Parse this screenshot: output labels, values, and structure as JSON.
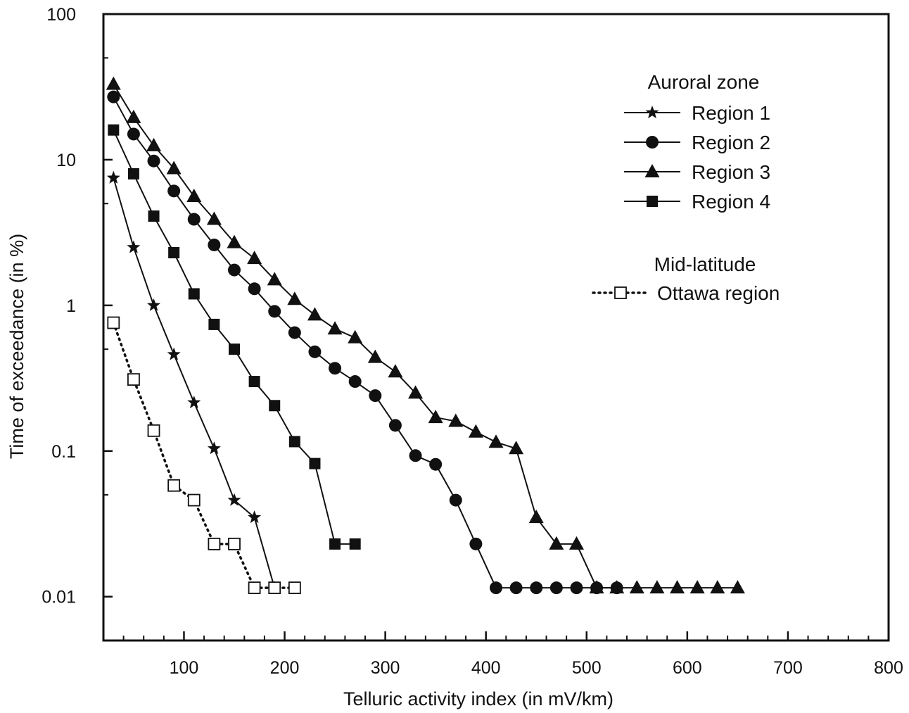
{
  "chart_data": {
    "type": "line",
    "title": "",
    "xlabel": "Telluric activity index (in mV/km)",
    "ylabel": "Time of exceedance (in %)",
    "xlim": [
      20,
      800
    ],
    "ylim": [
      0.005,
      100
    ],
    "y_scale": "log",
    "x_ticks": [
      100,
      200,
      300,
      400,
      500,
      600,
      700,
      800
    ],
    "x_tick_labels": [
      "100",
      "200",
      "300",
      "400",
      "500",
      "600",
      "700",
      "800"
    ],
    "y_ticks": [
      0.01,
      0.1,
      1,
      10,
      100
    ],
    "y_tick_labels": [
      "0.01",
      "0.1",
      "1",
      "10",
      "100"
    ],
    "grid": false,
    "legend": {
      "placement": "top-right",
      "groups": [
        {
          "heading": "Auroral zone",
          "entries": [
            "Region 1",
            "Region 2",
            "Region 3",
            "Region 4"
          ]
        },
        {
          "heading": "Mid-latitude",
          "entries": [
            "Ottawa region"
          ]
        }
      ]
    },
    "series": [
      {
        "name": "Region 1",
        "marker": "star",
        "line": "solid",
        "color": "#111111",
        "x": [
          30,
          50,
          70,
          90,
          110,
          130,
          150,
          170,
          190
        ],
        "y": [
          7.5,
          2.5,
          1.0,
          0.46,
          0.215,
          0.104,
          0.046,
          0.035,
          0.0115
        ]
      },
      {
        "name": "Region 2",
        "marker": "circle",
        "line": "solid",
        "color": "#111111",
        "x": [
          30,
          50,
          70,
          90,
          110,
          130,
          150,
          170,
          190,
          210,
          230,
          250,
          270,
          290,
          310,
          330,
          350,
          370,
          390,
          410,
          430,
          450,
          470,
          490,
          510,
          530
        ],
        "y": [
          27,
          15,
          9.8,
          6.1,
          3.9,
          2.6,
          1.75,
          1.3,
          0.91,
          0.65,
          0.48,
          0.37,
          0.3,
          0.24,
          0.15,
          0.093,
          0.081,
          0.046,
          0.023,
          0.0115,
          0.0115,
          0.0115,
          0.0115,
          0.0115,
          0.0115,
          0.0115
        ]
      },
      {
        "name": "Region 3",
        "marker": "triangle",
        "line": "solid",
        "color": "#111111",
        "x": [
          30,
          50,
          70,
          90,
          110,
          130,
          150,
          170,
          190,
          210,
          230,
          250,
          270,
          290,
          310,
          330,
          350,
          370,
          390,
          410,
          430,
          450,
          470,
          490,
          510,
          530,
          550,
          570,
          590,
          610,
          630,
          650
        ],
        "y": [
          33,
          19.5,
          12.5,
          8.7,
          5.6,
          3.9,
          2.7,
          2.1,
          1.5,
          1.1,
          0.86,
          0.69,
          0.6,
          0.44,
          0.35,
          0.25,
          0.17,
          0.16,
          0.135,
          0.115,
          0.104,
          0.035,
          0.023,
          0.023,
          0.0115,
          0.0115,
          0.0115,
          0.0115,
          0.0115,
          0.0115,
          0.0115,
          0.0115
        ]
      },
      {
        "name": "Region 4",
        "marker": "square",
        "line": "solid",
        "color": "#111111",
        "x": [
          30,
          50,
          70,
          90,
          110,
          130,
          150,
          170,
          190,
          210,
          230,
          250,
          270
        ],
        "y": [
          16,
          8.0,
          4.1,
          2.3,
          1.2,
          0.74,
          0.5,
          0.3,
          0.205,
          0.116,
          0.082,
          0.023,
          0.023
        ]
      },
      {
        "name": "Ottawa region",
        "marker": "open-square",
        "line": "dotted",
        "color": "#111111",
        "x": [
          30,
          50,
          70,
          90,
          110,
          130,
          150,
          170,
          190,
          210
        ],
        "y": [
          0.76,
          0.31,
          0.138,
          0.058,
          0.046,
          0.023,
          0.023,
          0.0115,
          0.0115,
          0.0115
        ]
      }
    ]
  }
}
